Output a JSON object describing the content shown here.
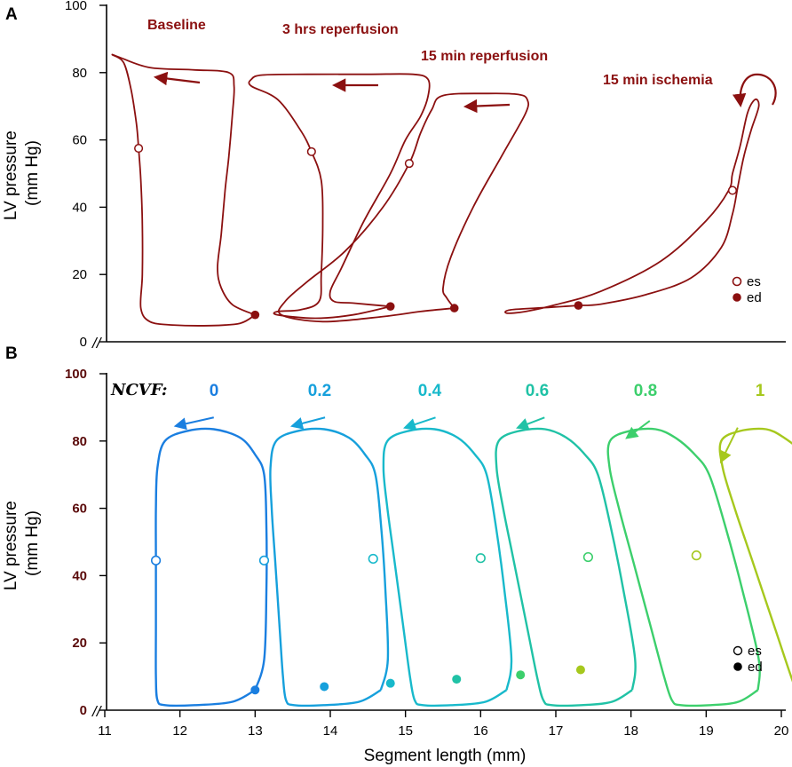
{
  "chart_data": [
    {
      "panel": "A",
      "type": "line",
      "title": "",
      "ylabel_line1": "LV pressure",
      "ylabel_line2": "(mm Hg)",
      "xlabel": "",
      "ylim": [
        0,
        100
      ],
      "xlim": [
        10.85,
        20
      ],
      "yticks": [
        "0",
        "20",
        "40",
        "60",
        "80",
        "100"
      ],
      "color": "#8b1010",
      "series": [
        {
          "name": "Baseline",
          "es": [
            11.45,
            57.5
          ],
          "ed": [
            13.0,
            8.0
          ],
          "loop": [
            [
              13.0,
              8.0
            ],
            [
              12.7,
              11
            ],
            [
              12.55,
              16
            ],
            [
              12.5,
              22
            ],
            [
              12.55,
              32
            ],
            [
              12.6,
              45
            ],
            [
              12.65,
              55
            ],
            [
              12.7,
              68
            ],
            [
              12.72,
              76
            ],
            [
              12.65,
              80
            ],
            [
              12.2,
              80.8
            ],
            [
              11.6,
              81.5
            ],
            [
              11.2,
              84.5
            ],
            [
              11.1,
              85.3
            ],
            [
              11.25,
              83
            ],
            [
              11.35,
              75
            ],
            [
              11.42,
              65
            ],
            [
              11.45,
              57.5
            ],
            [
              11.48,
              48
            ],
            [
              11.5,
              35
            ],
            [
              11.5,
              20
            ],
            [
              11.48,
              10
            ],
            [
              11.6,
              6
            ],
            [
              11.9,
              5
            ],
            [
              12.4,
              4.8
            ],
            [
              12.8,
              5.5
            ],
            [
              13.0,
              8.0
            ]
          ]
        },
        {
          "name": "3 hrs reperfusion",
          "es": [
            13.75,
            56.5
          ],
          "ed": [
            14.8,
            10.5
          ],
          "loop": [
            [
              14.8,
              10.5
            ],
            [
              14.3,
              11.5
            ],
            [
              14.05,
              12
            ],
            [
              14.0,
              15
            ],
            [
              14.15,
              22
            ],
            [
              14.45,
              36
            ],
            [
              14.8,
              50
            ],
            [
              15.0,
              60
            ],
            [
              15.2,
              67
            ],
            [
              15.3,
              73
            ],
            [
              15.3,
              78
            ],
            [
              15.1,
              79.5
            ],
            [
              14.5,
              79.5
            ],
            [
              13.7,
              79.5
            ],
            [
              13.1,
              79.3
            ],
            [
              12.95,
              78
            ],
            [
              12.95,
              76
            ],
            [
              13.3,
              72
            ],
            [
              13.6,
              63
            ],
            [
              13.75,
              56.5
            ],
            [
              13.88,
              48
            ],
            [
              13.9,
              35
            ],
            [
              13.88,
              20
            ],
            [
              13.85,
              12
            ],
            [
              13.6,
              9.5
            ],
            [
              13.3,
              9
            ],
            [
              13.3,
              8
            ],
            [
              13.8,
              7
            ],
            [
              14.3,
              8
            ],
            [
              14.8,
              10.5
            ]
          ]
        },
        {
          "name": "15 min reperfusion",
          "es": [
            15.05,
            53.0
          ],
          "ed": [
            15.65,
            10.0
          ],
          "loop": [
            [
              15.65,
              10.0
            ],
            [
              15.55,
              13
            ],
            [
              15.5,
              16
            ],
            [
              15.6,
              25
            ],
            [
              15.9,
              40
            ],
            [
              16.3,
              56
            ],
            [
              16.6,
              68
            ],
            [
              16.62,
              72
            ],
            [
              16.5,
              73.5
            ],
            [
              16.1,
              73.8
            ],
            [
              15.5,
              73.2
            ],
            [
              15.35,
              69
            ],
            [
              15.2,
              62
            ],
            [
              15.05,
              53
            ],
            [
              14.7,
              40
            ],
            [
              14.2,
              27
            ],
            [
              13.7,
              18
            ],
            [
              13.4,
              12
            ],
            [
              13.35,
              8
            ],
            [
              13.9,
              6
            ],
            [
              14.7,
              7.5
            ],
            [
              15.2,
              9
            ],
            [
              15.65,
              10.0
            ]
          ]
        },
        {
          "name": "15 min ischemia",
          "es": [
            19.35,
            45.0
          ],
          "ed": [
            17.3,
            10.8
          ],
          "loop": [
            [
              17.3,
              10.8
            ],
            [
              17.6,
              11.2
            ],
            [
              18.2,
              14
            ],
            [
              18.8,
              19
            ],
            [
              19.2,
              28
            ],
            [
              19.35,
              38
            ],
            [
              19.42,
              46
            ],
            [
              19.5,
              55
            ],
            [
              19.6,
              63
            ],
            [
              19.7,
              70
            ],
            [
              19.65,
              72
            ],
            [
              19.55,
              68
            ],
            [
              19.45,
              58
            ],
            [
              19.35,
              50
            ],
            [
              19.3,
              45
            ],
            [
              19.0,
              36
            ],
            [
              18.4,
              24
            ],
            [
              17.6,
              15
            ],
            [
              17.0,
              11
            ],
            [
              16.6,
              9
            ],
            [
              16.35,
              8.5
            ],
            [
              16.4,
              9.5
            ],
            [
              16.9,
              10.2
            ],
            [
              17.3,
              10.8
            ]
          ]
        }
      ],
      "annotations": [
        "Baseline",
        "3 hrs reperfusion",
        "15 min reperfusion",
        "15 min ischemia"
      ],
      "legend": {
        "es": "es",
        "ed": "ed"
      }
    },
    {
      "panel": "B",
      "type": "line",
      "title": "",
      "ylabel_line1": "LV pressure",
      "ylabel_line2": "(mm Hg)",
      "xlabel": "Segment length (mm)",
      "ylim": [
        0,
        100
      ],
      "xlim": [
        10.85,
        20
      ],
      "xticks": [
        "11",
        "12",
        "13",
        "14",
        "15",
        "16",
        "17",
        "18",
        "19",
        "20"
      ],
      "yticks": [
        "0",
        "20",
        "40",
        "60",
        "80",
        "100"
      ],
      "ncvf_label": "NCVF:",
      "series": [
        {
          "name": "0",
          "color": "#1a7ee0",
          "es": [
            11.68,
            44.5
          ],
          "ed": [
            13.0,
            6.0
          ],
          "shift": 0.0,
          "arrow": [
            12.45,
            87.0,
            11.95,
            84.5
          ]
        },
        {
          "name": "0.2",
          "color": "#16a0dc",
          "es": [
            13.12,
            44.5
          ],
          "ed": [
            13.92,
            7.0
          ],
          "shift": 1.45,
          "arrow": [
            13.93,
            87.0,
            13.5,
            84.5
          ]
        },
        {
          "name": "0.4",
          "color": "#18b9cb",
          "es": [
            14.57,
            45.0
          ],
          "ed": [
            14.8,
            8.0
          ],
          "shift": 2.9,
          "arrow": [
            15.4,
            87.0,
            15.0,
            84.0
          ]
        },
        {
          "name": "0.6",
          "color": "#20c2a6",
          "es": [
            16.0,
            45.2
          ],
          "ed": [
            15.68,
            9.2
          ],
          "shift": 4.35,
          "arrow": [
            16.85,
            87.0,
            16.5,
            84.0
          ]
        },
        {
          "name": "0.8",
          "color": "#3ccf6c",
          "es": [
            17.43,
            45.5
          ],
          "ed": [
            16.53,
            10.5
          ],
          "shift": 5.8,
          "arrow": [
            18.25,
            86.0,
            17.95,
            81.0
          ]
        },
        {
          "name": "1",
          "color": "#a6c81d",
          "es": [
            18.87,
            46.0
          ],
          "ed": [
            17.33,
            12.0
          ],
          "shift": 7.25,
          "arrow": [
            19.42,
            84.0,
            19.2,
            74.0
          ]
        }
      ],
      "legend": {
        "es": "es",
        "ed": "ed"
      }
    }
  ]
}
